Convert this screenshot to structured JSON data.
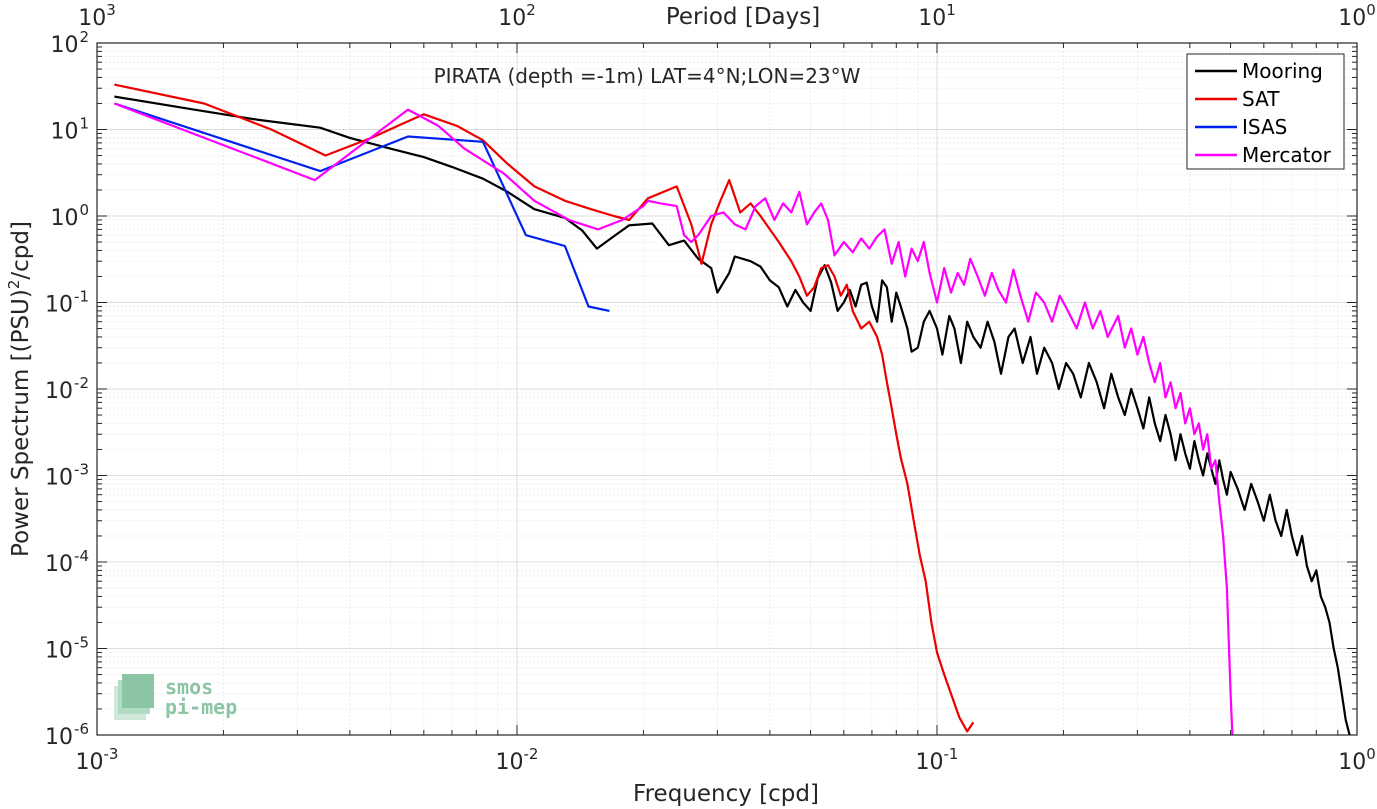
{
  "chart_data": {
    "type": "line",
    "title": "PIRATA (depth =-1m) LAT=4°N;LON=23°W",
    "xlabel": "Frequency [cpd]",
    "ylabel": "Power Spectrum [(PSU)",
    "ylabel_sup": "2",
    "ylabel_tail": "/cpd]",
    "top_xlabel": "Period [Days]",
    "x_scale": "log",
    "y_scale": "log",
    "xlim": [
      0.001,
      1
    ],
    "ylim": [
      1e-06,
      100
    ],
    "grid": true,
    "minor_grid": true,
    "legend_position": "top-right",
    "x_ticks": [
      {
        "base": "10",
        "exp": "-3"
      },
      {
        "base": "10",
        "exp": "-2"
      },
      {
        "base": "10",
        "exp": "-1"
      },
      {
        "base": "10",
        "exp": "0"
      }
    ],
    "y_ticks": [
      {
        "base": "10",
        "exp": "2"
      },
      {
        "base": "10",
        "exp": "1"
      },
      {
        "base": "10",
        "exp": "0"
      },
      {
        "base": "10",
        "exp": "-1"
      },
      {
        "base": "10",
        "exp": "-2"
      },
      {
        "base": "10",
        "exp": "-3"
      },
      {
        "base": "10",
        "exp": "-4"
      },
      {
        "base": "10",
        "exp": "-5"
      },
      {
        "base": "10",
        "exp": "-6"
      }
    ],
    "top_ticks": [
      {
        "base": "10",
        "exp": "3"
      },
      {
        "base": "10",
        "exp": "2"
      },
      {
        "base": "10",
        "exp": "1"
      },
      {
        "base": "10",
        "exp": "0"
      }
    ],
    "series": [
      {
        "name": "Mooring",
        "color": "#000000",
        "points": [
          [
            0.0011,
            24
          ],
          [
            0.0017,
            17
          ],
          [
            0.0024,
            13
          ],
          [
            0.0034,
            10.5
          ],
          [
            0.004,
            8
          ],
          [
            0.005,
            6
          ],
          [
            0.006,
            4.8
          ],
          [
            0.007,
            3.7
          ],
          [
            0.0083,
            2.7
          ],
          [
            0.0095,
            1.9
          ],
          [
            0.011,
            1.2
          ],
          [
            0.013,
            0.95
          ],
          [
            0.0143,
            0.68
          ],
          [
            0.0155,
            0.42
          ],
          [
            0.0173,
            0.62
          ],
          [
            0.0185,
            0.78
          ],
          [
            0.021,
            0.82
          ],
          [
            0.023,
            0.46
          ],
          [
            0.025,
            0.52
          ],
          [
            0.027,
            0.32
          ],
          [
            0.029,
            0.25
          ],
          [
            0.03,
            0.13
          ],
          [
            0.032,
            0.22
          ],
          [
            0.033,
            0.34
          ],
          [
            0.036,
            0.3
          ],
          [
            0.038,
            0.26
          ],
          [
            0.04,
            0.18
          ],
          [
            0.042,
            0.15
          ],
          [
            0.044,
            0.09
          ],
          [
            0.046,
            0.14
          ],
          [
            0.048,
            0.1
          ],
          [
            0.05,
            0.08
          ],
          [
            0.052,
            0.19
          ],
          [
            0.054,
            0.27
          ],
          [
            0.056,
            0.17
          ],
          [
            0.058,
            0.08
          ],
          [
            0.06,
            0.1
          ],
          [
            0.062,
            0.14
          ],
          [
            0.064,
            0.09
          ],
          [
            0.066,
            0.16
          ],
          [
            0.068,
            0.17
          ],
          [
            0.07,
            0.09
          ],
          [
            0.072,
            0.06
          ],
          [
            0.074,
            0.18
          ],
          [
            0.076,
            0.15
          ],
          [
            0.078,
            0.06
          ],
          [
            0.08,
            0.13
          ],
          [
            0.082,
            0.09
          ],
          [
            0.085,
            0.05
          ],
          [
            0.087,
            0.027
          ],
          [
            0.09,
            0.03
          ],
          [
            0.093,
            0.06
          ],
          [
            0.096,
            0.08
          ],
          [
            0.1,
            0.05
          ],
          [
            0.103,
            0.025
          ],
          [
            0.107,
            0.07
          ],
          [
            0.11,
            0.05
          ],
          [
            0.114,
            0.02
          ],
          [
            0.118,
            0.06
          ],
          [
            0.122,
            0.04
          ],
          [
            0.127,
            0.03
          ],
          [
            0.132,
            0.06
          ],
          [
            0.137,
            0.035
          ],
          [
            0.142,
            0.015
          ],
          [
            0.148,
            0.04
          ],
          [
            0.153,
            0.05
          ],
          [
            0.16,
            0.02
          ],
          [
            0.167,
            0.04
          ],
          [
            0.173,
            0.015
          ],
          [
            0.18,
            0.03
          ],
          [
            0.188,
            0.02
          ],
          [
            0.195,
            0.01
          ],
          [
            0.203,
            0.02
          ],
          [
            0.211,
            0.015
          ],
          [
            0.22,
            0.008
          ],
          [
            0.23,
            0.02
          ],
          [
            0.24,
            0.012
          ],
          [
            0.25,
            0.006
          ],
          [
            0.26,
            0.015
          ],
          [
            0.27,
            0.008
          ],
          [
            0.28,
            0.005
          ],
          [
            0.29,
            0.01
          ],
          [
            0.3,
            0.006
          ],
          [
            0.31,
            0.0035
          ],
          [
            0.32,
            0.008
          ],
          [
            0.33,
            0.004
          ],
          [
            0.34,
            0.0025
          ],
          [
            0.35,
            0.005
          ],
          [
            0.36,
            0.003
          ],
          [
            0.37,
            0.0015
          ],
          [
            0.38,
            0.003
          ],
          [
            0.39,
            0.0018
          ],
          [
            0.4,
            0.0012
          ],
          [
            0.41,
            0.0025
          ],
          [
            0.42,
            0.0015
          ],
          [
            0.43,
            0.001
          ],
          [
            0.44,
            0.0018
          ],
          [
            0.45,
            0.0012
          ],
          [
            0.46,
            0.0008
          ],
          [
            0.47,
            0.0015
          ],
          [
            0.48,
            0.0009
          ],
          [
            0.49,
            0.0006
          ],
          [
            0.5,
            0.0011
          ],
          [
            0.52,
            0.0007
          ],
          [
            0.54,
            0.0004
          ],
          [
            0.56,
            0.0008
          ],
          [
            0.58,
            0.0005
          ],
          [
            0.6,
            0.0003
          ],
          [
            0.62,
            0.0006
          ],
          [
            0.64,
            0.0003
          ],
          [
            0.66,
            0.0002
          ],
          [
            0.68,
            0.0004
          ],
          [
            0.7,
            0.0002
          ],
          [
            0.72,
            0.00012
          ],
          [
            0.74,
            0.0002
          ],
          [
            0.76,
            9e-05
          ],
          [
            0.78,
            6e-05
          ],
          [
            0.8,
            8e-05
          ],
          [
            0.82,
            4e-05
          ],
          [
            0.84,
            3e-05
          ],
          [
            0.86,
            2e-05
          ],
          [
            0.88,
            1e-05
          ],
          [
            0.9,
            6e-06
          ],
          [
            0.92,
            3e-06
          ],
          [
            0.94,
            1.5e-06
          ],
          [
            0.96,
            1e-06
          ]
        ]
      },
      {
        "name": "SAT",
        "color": "#ee0000",
        "points": [
          [
            0.0011,
            33
          ],
          [
            0.0018,
            20
          ],
          [
            0.0026,
            10
          ],
          [
            0.0035,
            5
          ],
          [
            0.0045,
            8
          ],
          [
            0.0052,
            11
          ],
          [
            0.006,
            15
          ],
          [
            0.0072,
            11
          ],
          [
            0.0083,
            7.5
          ],
          [
            0.0095,
            4
          ],
          [
            0.011,
            2.2
          ],
          [
            0.013,
            1.5
          ],
          [
            0.015,
            1.2
          ],
          [
            0.017,
            1.0
          ],
          [
            0.0185,
            0.9
          ],
          [
            0.0205,
            1.6
          ],
          [
            0.024,
            2.2
          ],
          [
            0.026,
            0.8
          ],
          [
            0.0275,
            0.28
          ],
          [
            0.029,
            0.8
          ],
          [
            0.0305,
            1.5
          ],
          [
            0.032,
            2.6
          ],
          [
            0.034,
            1.1
          ],
          [
            0.036,
            1.4
          ],
          [
            0.038,
            1.0
          ],
          [
            0.04,
            0.7
          ],
          [
            0.042,
            0.5
          ],
          [
            0.045,
            0.3
          ],
          [
            0.047,
            0.2
          ],
          [
            0.049,
            0.12
          ],
          [
            0.051,
            0.15
          ],
          [
            0.053,
            0.25
          ],
          [
            0.055,
            0.27
          ],
          [
            0.057,
            0.2
          ],
          [
            0.059,
            0.12
          ],
          [
            0.061,
            0.16
          ],
          [
            0.063,
            0.08
          ],
          [
            0.066,
            0.05
          ],
          [
            0.069,
            0.06
          ],
          [
            0.072,
            0.04
          ],
          [
            0.074,
            0.025
          ],
          [
            0.076,
            0.012
          ],
          [
            0.078,
            0.006
          ],
          [
            0.08,
            0.003
          ],
          [
            0.082,
            0.0016
          ],
          [
            0.085,
            0.0008
          ],
          [
            0.088,
            0.0003
          ],
          [
            0.091,
            0.00012
          ],
          [
            0.094,
            6e-05
          ],
          [
            0.097,
            2e-05
          ],
          [
            0.1,
            9e-06
          ],
          [
            0.104,
            5e-06
          ],
          [
            0.108,
            3e-06
          ],
          [
            0.113,
            1.6e-06
          ],
          [
            0.118,
            1.1e-06
          ],
          [
            0.122,
            1.4e-06
          ]
        ]
      },
      {
        "name": "ISAS",
        "color": "#0022ee",
        "points": [
          [
            0.0011,
            20
          ],
          [
            0.0034,
            3.3
          ],
          [
            0.0055,
            8.3
          ],
          [
            0.0083,
            7.2
          ],
          [
            0.0105,
            0.6
          ],
          [
            0.013,
            0.45
          ],
          [
            0.0148,
            0.09
          ],
          [
            0.0166,
            0.08
          ]
        ]
      },
      {
        "name": "Mercator",
        "color": "#ff00ff",
        "points": [
          [
            0.0011,
            20
          ],
          [
            0.0033,
            2.6
          ],
          [
            0.0055,
            17
          ],
          [
            0.0065,
            11
          ],
          [
            0.0075,
            6
          ],
          [
            0.0093,
            3.1
          ],
          [
            0.011,
            1.5
          ],
          [
            0.0133,
            0.9
          ],
          [
            0.0156,
            0.7
          ],
          [
            0.0178,
            0.9
          ],
          [
            0.02,
            1.3
          ],
          [
            0.0205,
            1.5
          ],
          [
            0.022,
            1.4
          ],
          [
            0.024,
            1.3
          ],
          [
            0.025,
            0.6
          ],
          [
            0.026,
            0.5
          ],
          [
            0.027,
            0.6
          ],
          [
            0.029,
            1.0
          ],
          [
            0.031,
            1.1
          ],
          [
            0.033,
            0.8
          ],
          [
            0.035,
            0.7
          ],
          [
            0.037,
            1.3
          ],
          [
            0.039,
            1.6
          ],
          [
            0.041,
            0.9
          ],
          [
            0.043,
            1.4
          ],
          [
            0.045,
            1.1
          ],
          [
            0.047,
            1.9
          ],
          [
            0.049,
            0.8
          ],
          [
            0.051,
            1.1
          ],
          [
            0.053,
            1.4
          ],
          [
            0.055,
            0.9
          ],
          [
            0.057,
            0.35
          ],
          [
            0.06,
            0.5
          ],
          [
            0.063,
            0.38
          ],
          [
            0.066,
            0.55
          ],
          [
            0.069,
            0.42
          ],
          [
            0.072,
            0.58
          ],
          [
            0.075,
            0.7
          ],
          [
            0.078,
            0.28
          ],
          [
            0.081,
            0.5
          ],
          [
            0.084,
            0.2
          ],
          [
            0.087,
            0.42
          ],
          [
            0.09,
            0.3
          ],
          [
            0.093,
            0.5
          ],
          [
            0.096,
            0.22
          ],
          [
            0.1,
            0.1
          ],
          [
            0.104,
            0.25
          ],
          [
            0.108,
            0.13
          ],
          [
            0.112,
            0.22
          ],
          [
            0.116,
            0.16
          ],
          [
            0.12,
            0.32
          ],
          [
            0.125,
            0.2
          ],
          [
            0.13,
            0.12
          ],
          [
            0.135,
            0.22
          ],
          [
            0.14,
            0.14
          ],
          [
            0.146,
            0.1
          ],
          [
            0.152,
            0.24
          ],
          [
            0.158,
            0.12
          ],
          [
            0.165,
            0.06
          ],
          [
            0.172,
            0.13
          ],
          [
            0.18,
            0.1
          ],
          [
            0.188,
            0.06
          ],
          [
            0.196,
            0.12
          ],
          [
            0.205,
            0.08
          ],
          [
            0.215,
            0.05
          ],
          [
            0.225,
            0.1
          ],
          [
            0.235,
            0.05
          ],
          [
            0.245,
            0.08
          ],
          [
            0.255,
            0.04
          ],
          [
            0.27,
            0.07
          ],
          [
            0.28,
            0.03
          ],
          [
            0.29,
            0.05
          ],
          [
            0.3,
            0.025
          ],
          [
            0.31,
            0.04
          ],
          [
            0.32,
            0.02
          ],
          [
            0.33,
            0.012
          ],
          [
            0.34,
            0.02
          ],
          [
            0.35,
            0.008
          ],
          [
            0.36,
            0.012
          ],
          [
            0.37,
            0.006
          ],
          [
            0.38,
            0.009
          ],
          [
            0.39,
            0.004
          ],
          [
            0.4,
            0.006
          ],
          [
            0.41,
            0.003
          ],
          [
            0.42,
            0.004
          ],
          [
            0.43,
            0.002
          ],
          [
            0.44,
            0.003
          ],
          [
            0.45,
            0.0012
          ],
          [
            0.46,
            0.0015
          ],
          [
            0.47,
            0.0005
          ],
          [
            0.48,
            0.0002
          ],
          [
            0.49,
            5e-05
          ],
          [
            0.5,
            3e-06
          ],
          [
            0.505,
            1e-06
          ]
        ]
      }
    ]
  },
  "logo": {
    "line1": "smos",
    "line2": "pi-mep"
  }
}
